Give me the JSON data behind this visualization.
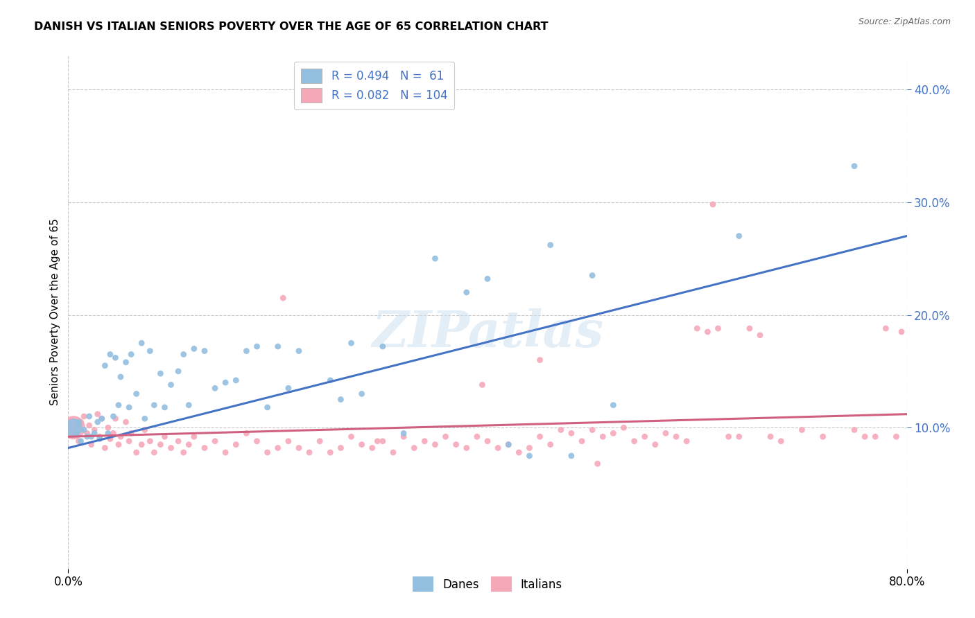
{
  "title": "DANISH VS ITALIAN SENIORS POVERTY OVER THE AGE OF 65 CORRELATION CHART",
  "source": "Source: ZipAtlas.com",
  "ylabel": "Seniors Poverty Over the Age of 65",
  "danish_color": "#92bfe0",
  "italian_color": "#f5a8b8",
  "danish_R": 0.494,
  "danish_N": 61,
  "italian_R": 0.082,
  "italian_N": 104,
  "trend_blue": "#4472c4",
  "trend_pink": "#d06080",
  "legend_label_danish": "Danes",
  "legend_label_italian": "Italians",
  "watermark_text": "ZIPatlas",
  "xlim": [
    0.0,
    0.8
  ],
  "ylim": [
    -0.025,
    0.43
  ],
  "ytick_vals": [
    0.1,
    0.2,
    0.3,
    0.4
  ],
  "danes_x": [
    0.005,
    0.008,
    0.01,
    0.012,
    0.015,
    0.018,
    0.02,
    0.022,
    0.025,
    0.028,
    0.03,
    0.032,
    0.035,
    0.038,
    0.04,
    0.043,
    0.045,
    0.048,
    0.05,
    0.055,
    0.058,
    0.06,
    0.065,
    0.07,
    0.073,
    0.078,
    0.082,
    0.088,
    0.092,
    0.098,
    0.105,
    0.11,
    0.115,
    0.12,
    0.13,
    0.14,
    0.15,
    0.16,
    0.17,
    0.18,
    0.19,
    0.2,
    0.21,
    0.22,
    0.25,
    0.26,
    0.27,
    0.28,
    0.3,
    0.32,
    0.35,
    0.38,
    0.4,
    0.42,
    0.44,
    0.46,
    0.48,
    0.5,
    0.52,
    0.64,
    0.75
  ],
  "danes_y": [
    0.1,
    0.095,
    0.105,
    0.088,
    0.098,
    0.092,
    0.11,
    0.092,
    0.095,
    0.105,
    0.09,
    0.108,
    0.155,
    0.095,
    0.165,
    0.11,
    0.162,
    0.12,
    0.145,
    0.158,
    0.118,
    0.165,
    0.13,
    0.175,
    0.108,
    0.168,
    0.12,
    0.148,
    0.118,
    0.138,
    0.15,
    0.165,
    0.12,
    0.17,
    0.168,
    0.135,
    0.14,
    0.142,
    0.168,
    0.172,
    0.118,
    0.172,
    0.135,
    0.168,
    0.142,
    0.125,
    0.175,
    0.13,
    0.172,
    0.095,
    0.25,
    0.22,
    0.232,
    0.085,
    0.075,
    0.262,
    0.075,
    0.235,
    0.12,
    0.27,
    0.332
  ],
  "danes_size": [
    350,
    40,
    40,
    40,
    40,
    40,
    40,
    40,
    40,
    40,
    40,
    40,
    40,
    40,
    40,
    40,
    40,
    40,
    40,
    40,
    40,
    40,
    40,
    40,
    40,
    40,
    40,
    40,
    40,
    40,
    40,
    40,
    40,
    40,
    40,
    40,
    40,
    40,
    40,
    40,
    40,
    40,
    40,
    40,
    40,
    40,
    40,
    40,
    40,
    40,
    40,
    40,
    40,
    40,
    40,
    40,
    40,
    40,
    40,
    40,
    40
  ],
  "italians_x": [
    0.005,
    0.008,
    0.01,
    0.012,
    0.015,
    0.018,
    0.02,
    0.022,
    0.025,
    0.028,
    0.03,
    0.032,
    0.035,
    0.038,
    0.04,
    0.043,
    0.045,
    0.048,
    0.05,
    0.055,
    0.058,
    0.06,
    0.065,
    0.07,
    0.073,
    0.078,
    0.082,
    0.088,
    0.092,
    0.098,
    0.105,
    0.11,
    0.115,
    0.12,
    0.13,
    0.14,
    0.15,
    0.16,
    0.17,
    0.18,
    0.19,
    0.2,
    0.21,
    0.22,
    0.23,
    0.24,
    0.25,
    0.26,
    0.27,
    0.28,
    0.29,
    0.3,
    0.31,
    0.32,
    0.33,
    0.34,
    0.35,
    0.36,
    0.37,
    0.38,
    0.39,
    0.4,
    0.41,
    0.42,
    0.43,
    0.44,
    0.45,
    0.46,
    0.47,
    0.48,
    0.49,
    0.5,
    0.51,
    0.52,
    0.53,
    0.54,
    0.55,
    0.56,
    0.57,
    0.58,
    0.59,
    0.6,
    0.61,
    0.62,
    0.63,
    0.64,
    0.65,
    0.66,
    0.67,
    0.68,
    0.7,
    0.72,
    0.75,
    0.76,
    0.77,
    0.78,
    0.79,
    0.795,
    0.45,
    0.395,
    0.205,
    0.295,
    0.505,
    0.615
  ],
  "italians_y": [
    0.1,
    0.095,
    0.088,
    0.105,
    0.11,
    0.095,
    0.102,
    0.085,
    0.098,
    0.112,
    0.092,
    0.108,
    0.082,
    0.1,
    0.09,
    0.095,
    0.108,
    0.085,
    0.092,
    0.105,
    0.088,
    0.095,
    0.078,
    0.085,
    0.098,
    0.088,
    0.078,
    0.085,
    0.092,
    0.082,
    0.088,
    0.078,
    0.085,
    0.092,
    0.082,
    0.088,
    0.078,
    0.085,
    0.095,
    0.088,
    0.078,
    0.082,
    0.088,
    0.082,
    0.078,
    0.088,
    0.078,
    0.082,
    0.092,
    0.085,
    0.082,
    0.088,
    0.078,
    0.092,
    0.082,
    0.088,
    0.085,
    0.092,
    0.085,
    0.082,
    0.092,
    0.088,
    0.082,
    0.085,
    0.078,
    0.082,
    0.092,
    0.085,
    0.098,
    0.095,
    0.088,
    0.098,
    0.092,
    0.095,
    0.1,
    0.088,
    0.092,
    0.085,
    0.095,
    0.092,
    0.088,
    0.188,
    0.185,
    0.188,
    0.092,
    0.092,
    0.188,
    0.182,
    0.092,
    0.088,
    0.098,
    0.092,
    0.098,
    0.092,
    0.092,
    0.188,
    0.092,
    0.185,
    0.16,
    0.138,
    0.215,
    0.088,
    0.068,
    0.298
  ],
  "italians_size": [
    600,
    40,
    40,
    40,
    40,
    40,
    40,
    40,
    40,
    40,
    40,
    40,
    40,
    40,
    40,
    40,
    40,
    40,
    40,
    40,
    40,
    40,
    40,
    40,
    40,
    40,
    40,
    40,
    40,
    40,
    40,
    40,
    40,
    40,
    40,
    40,
    40,
    40,
    40,
    40,
    40,
    40,
    40,
    40,
    40,
    40,
    40,
    40,
    40,
    40,
    40,
    40,
    40,
    40,
    40,
    40,
    40,
    40,
    40,
    40,
    40,
    40,
    40,
    40,
    40,
    40,
    40,
    40,
    40,
    40,
    40,
    40,
    40,
    40,
    40,
    40,
    40,
    40,
    40,
    40,
    40,
    40,
    40,
    40,
    40,
    40,
    40,
    40,
    40,
    40,
    40,
    40,
    40,
    40,
    40,
    40,
    40,
    40,
    40,
    40,
    40,
    40,
    40,
    40
  ]
}
